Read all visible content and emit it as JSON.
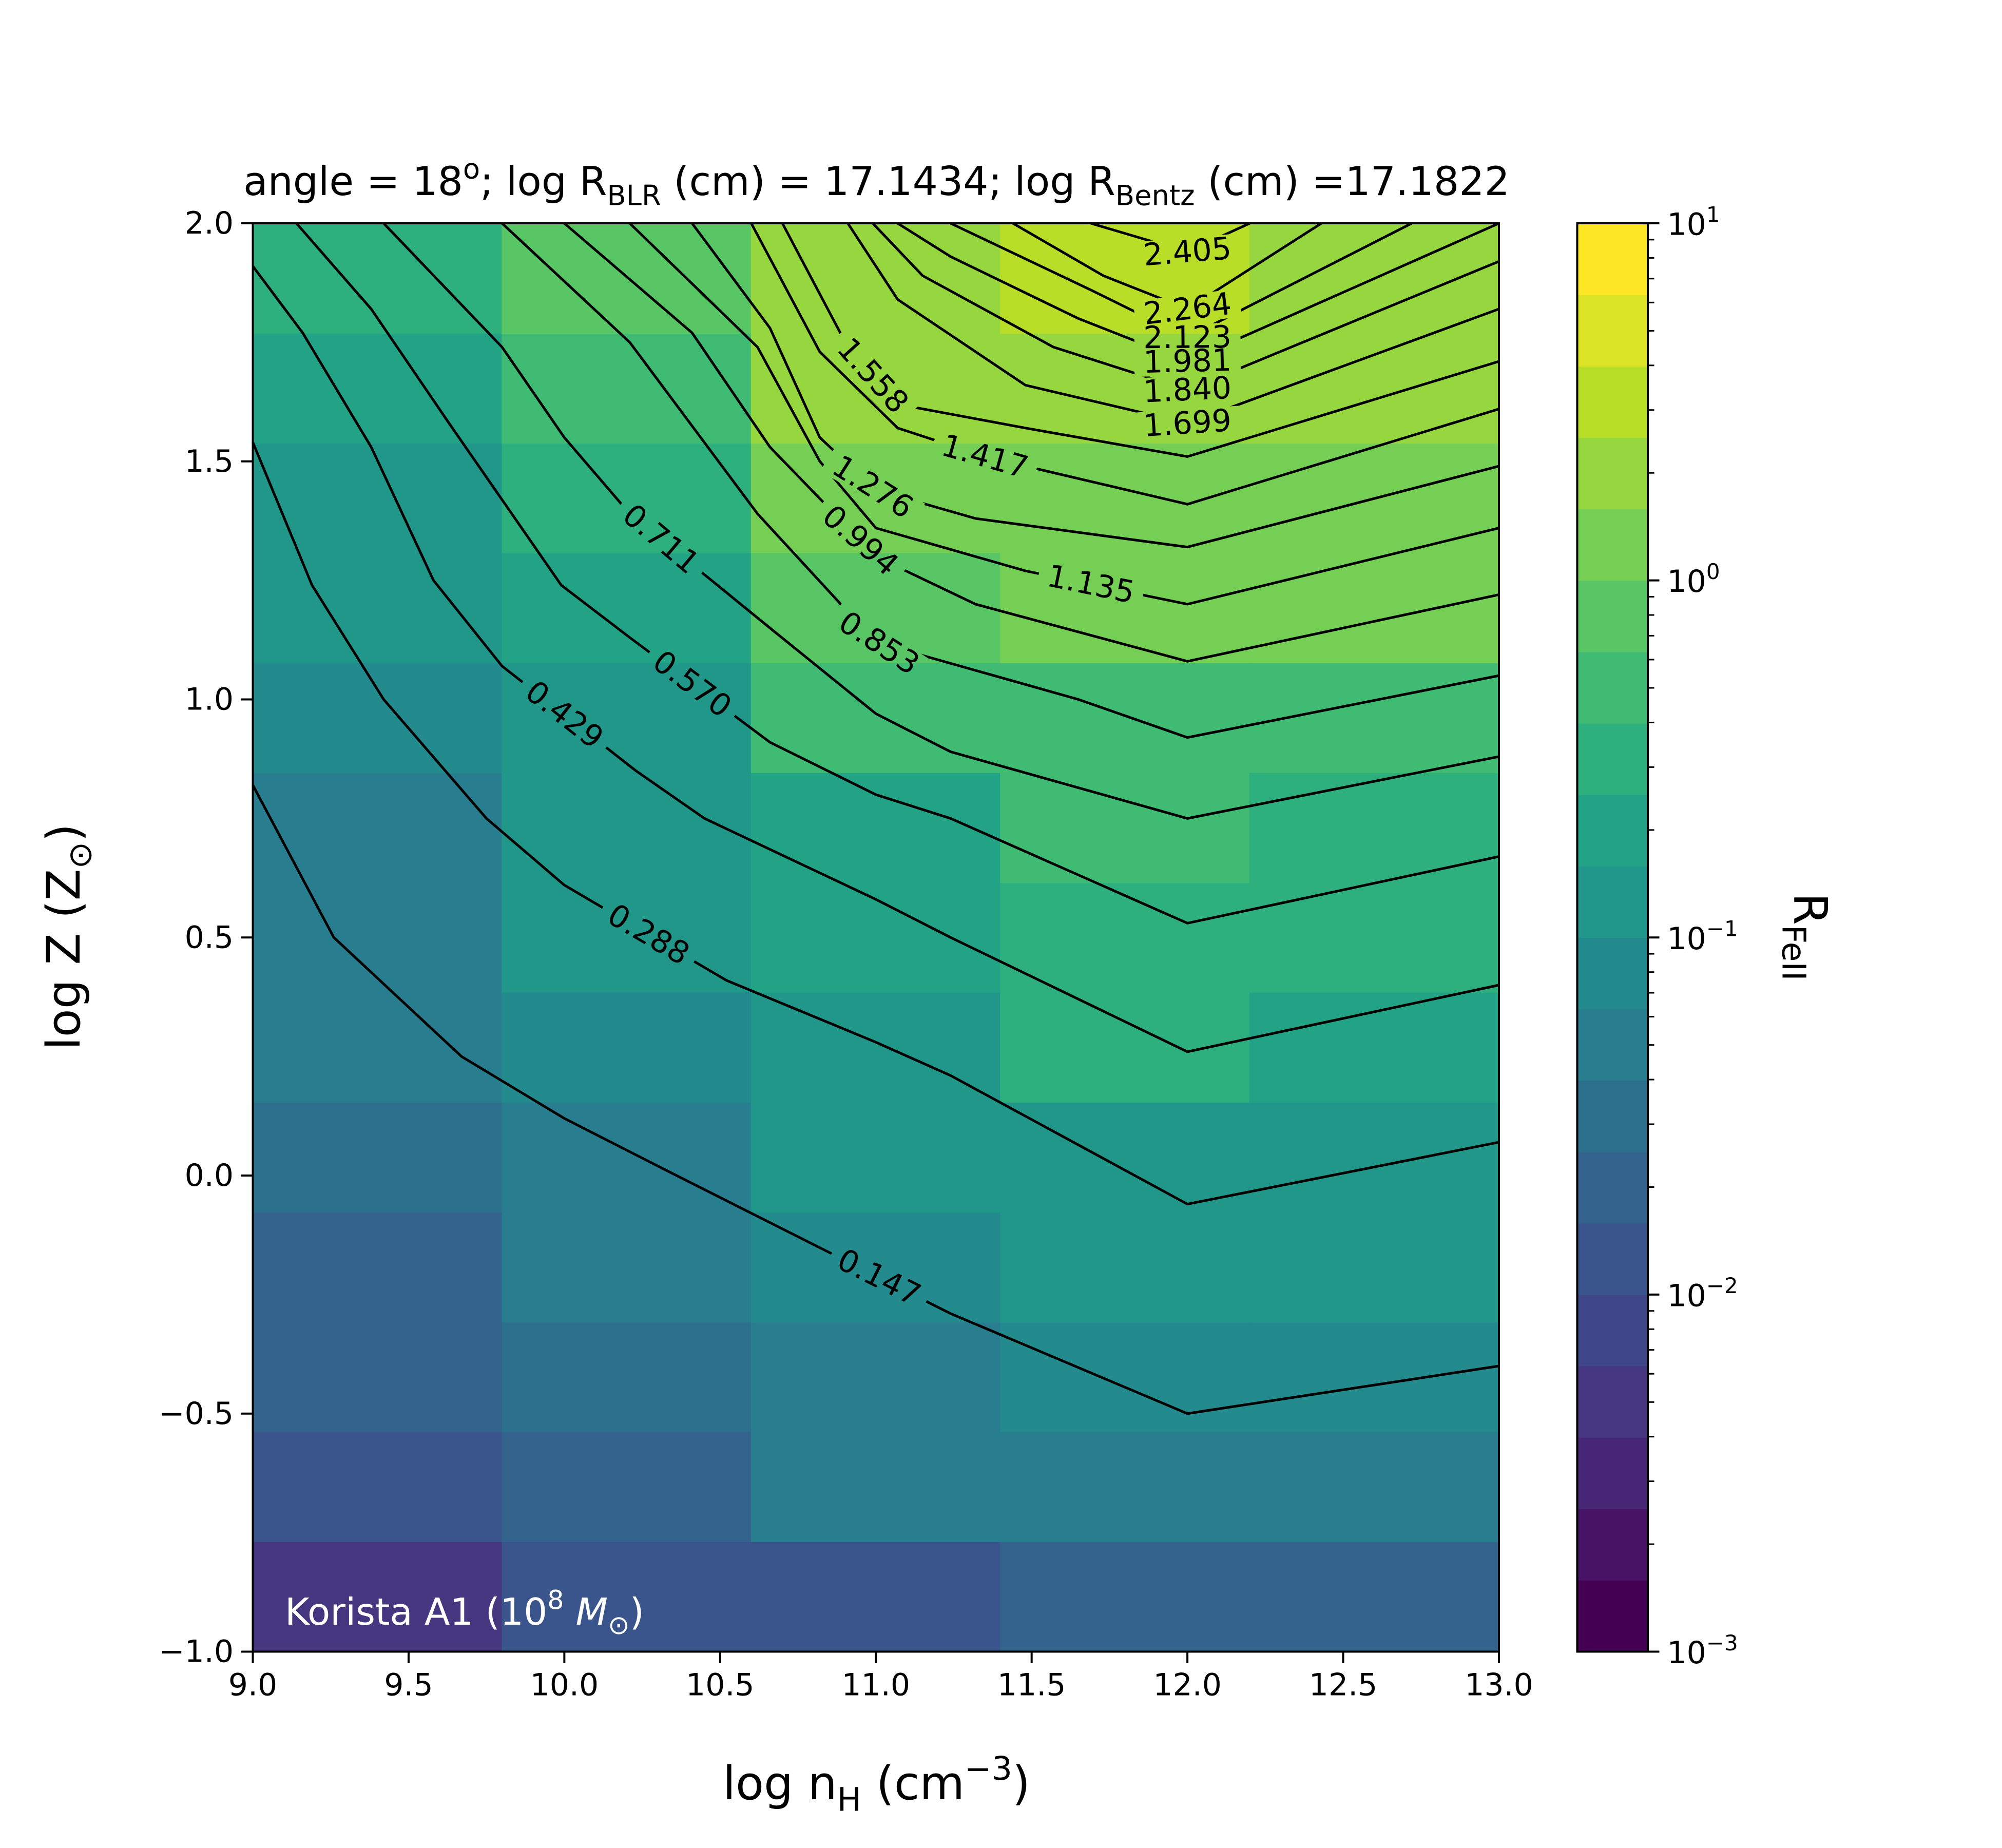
{
  "chart_data": {
    "type": "heatmap_contour",
    "title": [
      {
        "text": "angle = 18"
      },
      {
        "text": "o",
        "script": "super"
      },
      {
        "text": "; log R"
      },
      {
        "text": "BLR",
        "script": "sub"
      },
      {
        "text": " (cm) = 17.1434; log R"
      },
      {
        "text": "Bentz",
        "script": "sub"
      },
      {
        "text": " (cm) =17.1822"
      }
    ],
    "xlabel": [
      {
        "text": "log n"
      },
      {
        "text": "H",
        "script": "sub"
      },
      {
        "text": " (cm"
      },
      {
        "text": "−3",
        "script": "super"
      },
      {
        "text": ")"
      }
    ],
    "ylabel": [
      {
        "text": "log Z (Z"
      },
      {
        "text": "⊙",
        "script": "sub"
      },
      {
        "text": ")"
      }
    ],
    "annotation": [
      {
        "text": "Korista A1 (10"
      },
      {
        "text": "8",
        "script": "super"
      },
      {
        "text": " M",
        "style": "italic"
      },
      {
        "text": "⊙",
        "script": "sub"
      },
      {
        "text": ")"
      }
    ],
    "annotation_color": "#ffffff",
    "xlim": [
      9,
      13
    ],
    "ylim": [
      -1,
      2
    ],
    "xticks": [
      {
        "value": 9,
        "label": "9.0"
      },
      {
        "value": 9.5,
        "label": "9.5"
      },
      {
        "value": 10,
        "label": "10.0"
      },
      {
        "value": 10.5,
        "label": "10.5"
      },
      {
        "value": 11,
        "label": "11.0"
      },
      {
        "value": 11.5,
        "label": "11.5"
      },
      {
        "value": 12,
        "label": "12.0"
      },
      {
        "value": 12.5,
        "label": "12.5"
      },
      {
        "value": 13,
        "label": "13.0"
      }
    ],
    "yticks": [
      {
        "value": -1,
        "label": "−1.0"
      },
      {
        "value": -0.5,
        "label": "−0.5"
      },
      {
        "value": 0,
        "label": "0.0"
      },
      {
        "value": 0.5,
        "label": "0.5"
      },
      {
        "value": 1,
        "label": "1.0"
      },
      {
        "value": 1.5,
        "label": "1.5"
      },
      {
        "value": 2,
        "label": "2.0"
      }
    ],
    "x_edges": [
      9,
      9.8,
      10.6,
      11.4,
      12.2,
      13
    ],
    "y_edges": [
      -1,
      -0.769,
      -0.538,
      -0.308,
      -0.077,
      0.154,
      0.385,
      0.615,
      0.846,
      1.077,
      1.308,
      1.538,
      1.769,
      2
    ],
    "z": [
      [
        0.005,
        0.012,
        0.014,
        0.025,
        0.025
      ],
      [
        0.01,
        0.02,
        0.04,
        0.06,
        0.06
      ],
      [
        0.02,
        0.03,
        0.06,
        0.08,
        0.08
      ],
      [
        0.025,
        0.04,
        0.08,
        0.1,
        0.1
      ],
      [
        0.03,
        0.06,
        0.12,
        0.15,
        0.15
      ],
      [
        0.04,
        0.08,
        0.15,
        0.3,
        0.2
      ],
      [
        0.05,
        0.1,
        0.2,
        0.3,
        0.3
      ],
      [
        0.06,
        0.12,
        0.25,
        0.45,
        0.3
      ],
      [
        0.08,
        0.15,
        0.45,
        0.6,
        0.6
      ],
      [
        0.1,
        0.25,
        0.8,
        1.0,
        1.0
      ],
      [
        0.15,
        0.3,
        1.0,
        1.3,
        1.3
      ],
      [
        0.2,
        0.4,
        1.7,
        2.0,
        2.0
      ],
      [
        0.35,
        0.8,
        2.0,
        3.0,
        2.2
      ]
    ],
    "colormap": "viridis",
    "colorbar": {
      "label": [
        {
          "text": "R"
        },
        {
          "text": "FeII",
          "script": "sub"
        }
      ],
      "scale": "log",
      "lim": [
        0.001,
        10
      ],
      "bins": [
        0.001,
        0.001585,
        0.002512,
        0.003981,
        0.00631,
        0.01,
        0.01585,
        0.02512,
        0.03981,
        0.0631,
        0.1,
        0.1585,
        0.2512,
        0.3981,
        0.631,
        1,
        1.585,
        2.512,
        3.981,
        6.31,
        10
      ],
      "ticks": [
        {
          "value": 0.001,
          "label": "10",
          "exponent": "−3"
        },
        {
          "value": 0.01,
          "label": "10",
          "exponent": "−2"
        },
        {
          "value": 0.1,
          "label": "10",
          "exponent": "−1"
        },
        {
          "value": 1,
          "label": "10",
          "exponent": "0"
        },
        {
          "value": 10,
          "label": "10",
          "exponent": "1"
        }
      ],
      "minor_ticks": [
        0.002,
        0.003,
        0.004,
        0.005,
        0.006,
        0.007,
        0.008,
        0.009,
        0.02,
        0.03,
        0.04,
        0.05,
        0.06,
        0.07,
        0.08,
        0.09,
        0.2,
        0.3,
        0.4,
        0.5,
        0.6,
        0.7,
        0.8,
        0.9,
        2,
        3,
        4,
        5,
        6,
        7,
        8,
        9
      ]
    },
    "contour_color": "#000000",
    "contours": [
      {
        "level": 0.147,
        "x": [
          9,
          9.26,
          9.67,
          10,
          10.33,
          11.24,
          12,
          13
        ],
        "y": [
          0.82,
          0.5,
          0.25,
          0.12,
          0.01,
          -0.29,
          -0.5,
          -0.4
        ]
      },
      {
        "level": 0.288,
        "x": [
          9,
          9.19,
          9.42,
          9.75,
          10,
          10.52,
          11,
          11.24,
          12,
          13
        ],
        "y": [
          1.54,
          1.24,
          1.0,
          0.75,
          0.61,
          0.41,
          0.28,
          0.21,
          -0.06,
          0.07
        ]
      },
      {
        "level": 0.429,
        "x": [
          9,
          9.16,
          9.38,
          9.58,
          9.8,
          10.23,
          10.45,
          11,
          11.24,
          12,
          13
        ],
        "y": [
          1.91,
          1.77,
          1.53,
          1.25,
          1.07,
          0.85,
          0.75,
          0.58,
          0.5,
          0.26,
          0.4
        ]
      },
      {
        "level": 0.57,
        "label": "0.570",
        "x": [
          9.14,
          9.38,
          9.63,
          9.99,
          10.21,
          10.66,
          11,
          11.24,
          12,
          13
        ],
        "y": [
          2,
          1.82,
          1.58,
          1.24,
          1.13,
          0.91,
          0.8,
          0.75,
          0.53,
          0.67
        ]
      },
      {
        "level": 0.711,
        "x": [
          9.42,
          9.8,
          10,
          10.21,
          10.66,
          11,
          11.24,
          12,
          13
        ],
        "y": [
          2,
          1.74,
          1.55,
          1.39,
          1.15,
          0.97,
          0.89,
          0.75,
          0.88
        ]
      },
      {
        "level": 0.853,
        "x": [
          9.8,
          10.21,
          10.62,
          11,
          11.65,
          12,
          13
        ],
        "y": [
          2,
          1.75,
          1.39,
          1.12,
          1.0,
          0.92,
          1.05
        ]
      },
      {
        "level": 0.994,
        "x": [
          10,
          10.41,
          10.66,
          11,
          11.32,
          12,
          13
        ],
        "y": [
          2,
          1.77,
          1.53,
          1.3,
          1.2,
          1.08,
          1.22
        ]
      },
      {
        "level": 1.135,
        "x": [
          10.21,
          10.62,
          10.82,
          11,
          11.48,
          12,
          13
        ],
        "y": [
          2,
          1.74,
          1.5,
          1.36,
          1.27,
          1.2,
          1.36
        ]
      },
      {
        "level": 1.276,
        "x": [
          10.41,
          10.66,
          10.82,
          11,
          11.32,
          12,
          13
        ],
        "y": [
          2,
          1.78,
          1.55,
          1.44,
          1.38,
          1.32,
          1.49
        ]
      },
      {
        "level": 1.417,
        "x": [
          10.6,
          10.82,
          11.07,
          11.35,
          12,
          13
        ],
        "y": [
          2,
          1.73,
          1.57,
          1.51,
          1.41,
          1.61
        ]
      },
      {
        "level": 1.558,
        "x": [
          10.7,
          10.91,
          11.07,
          11.48,
          12,
          13
        ],
        "y": [
          2,
          1.74,
          1.62,
          1.57,
          1.51,
          1.71
        ]
      },
      {
        "level": 1.699,
        "x": [
          10.91,
          11.07,
          11.48,
          12,
          13
        ],
        "y": [
          2,
          1.84,
          1.66,
          1.58,
          1.82
        ]
      },
      {
        "level": 1.84,
        "label": "1.840",
        "x": [
          10.99,
          11.15,
          11.57,
          12,
          13
        ],
        "y": [
          2,
          1.89,
          1.74,
          1.65,
          1.92
        ]
      },
      {
        "level": 1.981,
        "x": [
          11.07,
          11.24,
          11.65,
          12,
          13
        ],
        "y": [
          2,
          1.93,
          1.8,
          1.71,
          2
        ]
      },
      {
        "level": 2.123,
        "x": [
          11.24,
          11.69,
          12,
          12.72
        ],
        "y": [
          2,
          1.86,
          1.76,
          2
        ]
      },
      {
        "level": 2.264,
        "x": [
          11.44,
          11.73,
          12,
          12.43
        ],
        "y": [
          2,
          1.89,
          1.82,
          2
        ]
      },
      {
        "level": 2.405,
        "x": [
          11.69,
          12,
          12.2
        ],
        "y": [
          2,
          1.94,
          2
        ]
      }
    ]
  }
}
